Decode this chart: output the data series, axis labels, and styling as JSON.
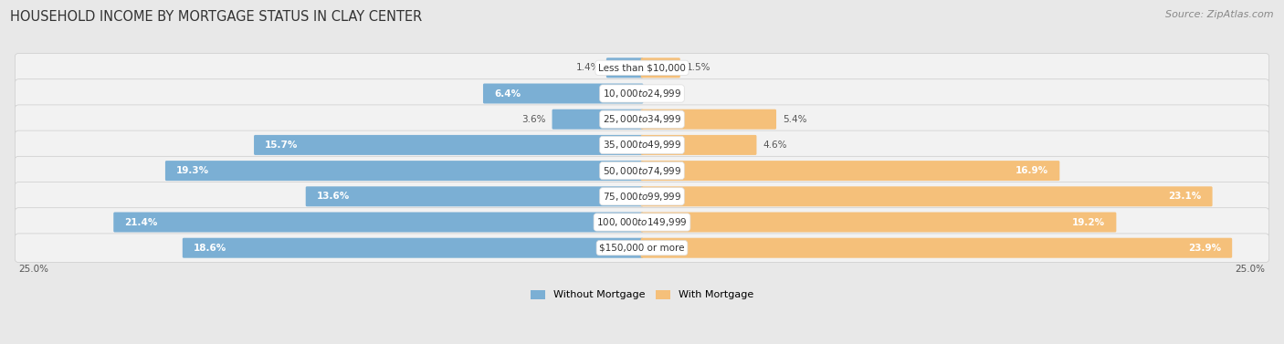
{
  "title": "HOUSEHOLD INCOME BY MORTGAGE STATUS IN CLAY CENTER",
  "source": "Source: ZipAtlas.com",
  "categories": [
    "Less than $10,000",
    "$10,000 to $24,999",
    "$25,000 to $34,999",
    "$35,000 to $49,999",
    "$50,000 to $74,999",
    "$75,000 to $99,999",
    "$100,000 to $149,999",
    "$150,000 or more"
  ],
  "without_mortgage": [
    1.4,
    6.4,
    3.6,
    15.7,
    19.3,
    13.6,
    21.4,
    18.6
  ],
  "with_mortgage": [
    1.5,
    0.0,
    5.4,
    4.6,
    16.9,
    23.1,
    19.2,
    23.9
  ],
  "color_without": "#7BAFD4",
  "color_with": "#F5C07A",
  "max_val": 25.0,
  "bg_color": "#e8e8e8",
  "row_bg_color": "#f2f2f2",
  "title_fontsize": 10.5,
  "label_fontsize": 7.5,
  "source_fontsize": 8,
  "legend_label_without": "Without Mortgage",
  "legend_label_with": "With Mortgage"
}
